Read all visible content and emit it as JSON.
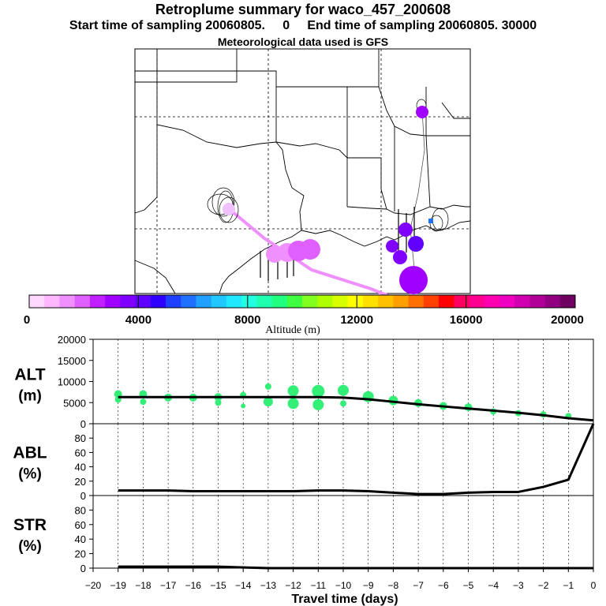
{
  "header": {
    "title": "Retroplume summary for waco_457_200608",
    "subtitle": "Start time of sampling 20060805.     0     End time of sampling 20060805. 30000",
    "met": "Meteorological data used is GFS"
  },
  "colorbar": {
    "label": "Altitude (m)",
    "tick_labels": [
      "0",
      "4000",
      "8000",
      "12000",
      "16000",
      "20000"
    ],
    "colors": [
      "#ffd8ff",
      "#ffb8ff",
      "#f090ff",
      "#e060ff",
      "#c020ff",
      "#a000ff",
      "#8000ff",
      "#6000ff",
      "#3000ff",
      "#2040ff",
      "#2070ff",
      "#20a0ff",
      "#20c8ff",
      "#20e8ff",
      "#20ffe0",
      "#20ffb0",
      "#20ff80",
      "#40ff40",
      "#80ff20",
      "#b0ff00",
      "#d8ff00",
      "#ffff00",
      "#ffe000",
      "#ffc000",
      "#ffa000",
      "#ff7000",
      "#ff4000",
      "#ff0000",
      "#ff0060",
      "#ff0090",
      "#ff00b0",
      "#f000c0",
      "#d000b0",
      "#b00098",
      "#900080",
      "#700060"
    ]
  },
  "chart_data": [
    {
      "type": "line",
      "panel": "ALT",
      "ylabel": "ALT\n(m)",
      "ylabel_lines": [
        "ALT",
        "(m)"
      ],
      "ylim": [
        0,
        20000
      ],
      "yticks": [
        "0",
        "5000",
        "10000",
        "15000",
        "20000"
      ],
      "x": [
        -19,
        -18,
        -17,
        -16,
        -15,
        -14,
        -13,
        -12,
        -11,
        -10,
        -9,
        -8,
        -7,
        -6,
        -5,
        -4,
        -3,
        -2,
        -1,
        0
      ],
      "series": [
        {
          "name": "mean altitude",
          "values": [
            6300,
            6300,
            6300,
            6300,
            6300,
            6300,
            6300,
            6300,
            6300,
            6200,
            5800,
            5200,
            4600,
            4100,
            3600,
            3100,
            2600,
            2000,
            1300,
            800
          ]
        }
      ],
      "scatter": {
        "x": [
          -19,
          -19,
          -18,
          -18,
          -17,
          -16,
          -15,
          -15,
          -14,
          -14,
          -13,
          -13,
          -12,
          -12,
          -11,
          -11,
          -10,
          -10,
          -9,
          -8,
          -7,
          -6,
          -5,
          -4,
          -3,
          -2,
          -1
        ],
        "y": [
          7000,
          5700,
          7000,
          5200,
          6200,
          6200,
          6300,
          5000,
          6800,
          4200,
          8800,
          5200,
          7800,
          4800,
          7700,
          4500,
          7900,
          4800,
          6400,
          5500,
          4900,
          4200,
          3900,
          2900,
          2500,
          2200,
          1800
        ],
        "size": [
          5,
          4,
          5,
          4,
          5,
          5,
          5,
          4,
          4,
          3,
          4,
          6,
          7,
          7,
          8,
          7,
          7,
          4,
          7,
          6,
          5,
          5,
          5,
          4,
          4,
          4,
          4
        ],
        "color": "#33ee77"
      }
    },
    {
      "type": "line",
      "panel": "ABL",
      "ylabel": "ABL\n(%)",
      "ylabel_lines": [
        "ABL",
        "(%)"
      ],
      "ylim": [
        0,
        100
      ],
      "yticks": [
        "0",
        "20",
        "40",
        "60",
        "80"
      ],
      "x": [
        -19,
        -18,
        -17,
        -16,
        -15,
        -14,
        -13,
        -12,
        -11,
        -10,
        -9,
        -8,
        -7,
        -6,
        -5,
        -4,
        -3,
        -2,
        -1,
        0
      ],
      "series": [
        {
          "name": "ABL fraction",
          "values": [
            7,
            7,
            7,
            6,
            6,
            6,
            6,
            6,
            7,
            7,
            6,
            4,
            2,
            2,
            4,
            5,
            5,
            12,
            22,
            100
          ]
        }
      ]
    },
    {
      "type": "line",
      "panel": "STR",
      "ylabel": "STR\n(%)",
      "ylabel_lines": [
        "STR",
        "(%)"
      ],
      "ylim": [
        0,
        100
      ],
      "yticks": [
        "0",
        "20",
        "40",
        "60",
        "80"
      ],
      "xlabel": "Travel time (days)",
      "xticks": [
        "−20",
        "−19",
        "−18",
        "−17",
        "−16",
        "−15",
        "−14",
        "−13",
        "−12",
        "−11",
        "−10",
        "−9",
        "−8",
        "−7",
        "−6",
        "−5",
        "−4",
        "−3",
        "−2",
        "−1",
        "0"
      ],
      "xlim": [
        -20,
        0
      ],
      "x": [
        -19,
        -18,
        -17,
        -16,
        -15,
        -14,
        -13,
        -12,
        -11,
        -10,
        -9,
        -8,
        -7,
        -6,
        -5,
        -4,
        -3,
        -2,
        -1,
        0
      ],
      "series": [
        {
          "name": "stratospheric fraction",
          "values": [
            2,
            2,
            2,
            2,
            2,
            1,
            0,
            0,
            0,
            0,
            0,
            0,
            0,
            0,
            0,
            0,
            0,
            0,
            0,
            0
          ]
        }
      ]
    }
  ]
}
